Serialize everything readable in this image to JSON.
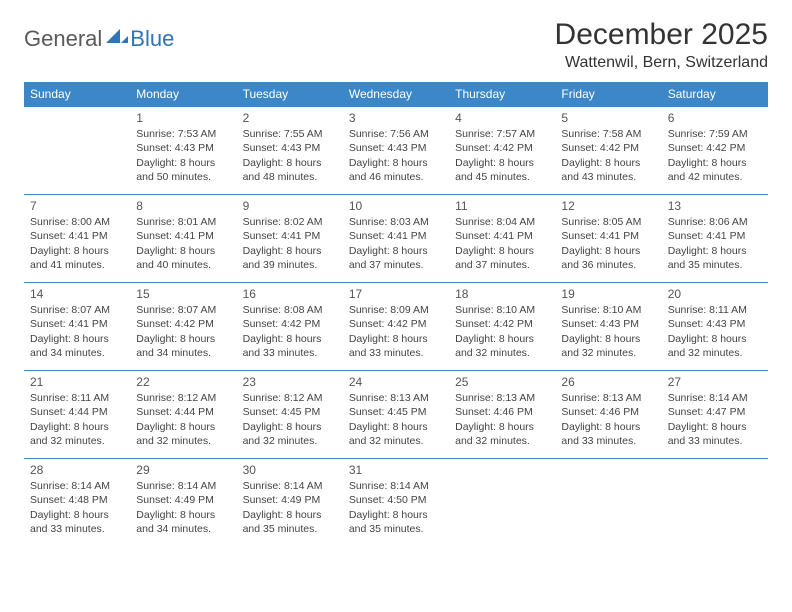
{
  "brand": {
    "part1": "General",
    "part2": "Blue"
  },
  "title": "December 2025",
  "location": "Wattenwil, Bern, Switzerland",
  "colors": {
    "header_bg": "#3b87c8",
    "header_fg": "#ffffff",
    "rule": "#3b87c8",
    "text": "#333333",
    "brand_gray": "#5a5a5a",
    "brand_blue": "#2f74b5",
    "page_bg": "#ffffff"
  },
  "typography": {
    "title_fontsize": 30,
    "location_fontsize": 16,
    "dayhead_fontsize": 12,
    "daynum_fontsize": 12,
    "body_fontsize": 10.5
  },
  "day_headers": [
    "Sunday",
    "Monday",
    "Tuesday",
    "Wednesday",
    "Thursday",
    "Friday",
    "Saturday"
  ],
  "weeks": [
    [
      null,
      {
        "n": "1",
        "sr": "7:53 AM",
        "ss": "4:43 PM",
        "dl": "8 hours and 50 minutes."
      },
      {
        "n": "2",
        "sr": "7:55 AM",
        "ss": "4:43 PM",
        "dl": "8 hours and 48 minutes."
      },
      {
        "n": "3",
        "sr": "7:56 AM",
        "ss": "4:43 PM",
        "dl": "8 hours and 46 minutes."
      },
      {
        "n": "4",
        "sr": "7:57 AM",
        "ss": "4:42 PM",
        "dl": "8 hours and 45 minutes."
      },
      {
        "n": "5",
        "sr": "7:58 AM",
        "ss": "4:42 PM",
        "dl": "8 hours and 43 minutes."
      },
      {
        "n": "6",
        "sr": "7:59 AM",
        "ss": "4:42 PM",
        "dl": "8 hours and 42 minutes."
      }
    ],
    [
      {
        "n": "7",
        "sr": "8:00 AM",
        "ss": "4:41 PM",
        "dl": "8 hours and 41 minutes."
      },
      {
        "n": "8",
        "sr": "8:01 AM",
        "ss": "4:41 PM",
        "dl": "8 hours and 40 minutes."
      },
      {
        "n": "9",
        "sr": "8:02 AM",
        "ss": "4:41 PM",
        "dl": "8 hours and 39 minutes."
      },
      {
        "n": "10",
        "sr": "8:03 AM",
        "ss": "4:41 PM",
        "dl": "8 hours and 37 minutes."
      },
      {
        "n": "11",
        "sr": "8:04 AM",
        "ss": "4:41 PM",
        "dl": "8 hours and 37 minutes."
      },
      {
        "n": "12",
        "sr": "8:05 AM",
        "ss": "4:41 PM",
        "dl": "8 hours and 36 minutes."
      },
      {
        "n": "13",
        "sr": "8:06 AM",
        "ss": "4:41 PM",
        "dl": "8 hours and 35 minutes."
      }
    ],
    [
      {
        "n": "14",
        "sr": "8:07 AM",
        "ss": "4:41 PM",
        "dl": "8 hours and 34 minutes."
      },
      {
        "n": "15",
        "sr": "8:07 AM",
        "ss": "4:42 PM",
        "dl": "8 hours and 34 minutes."
      },
      {
        "n": "16",
        "sr": "8:08 AM",
        "ss": "4:42 PM",
        "dl": "8 hours and 33 minutes."
      },
      {
        "n": "17",
        "sr": "8:09 AM",
        "ss": "4:42 PM",
        "dl": "8 hours and 33 minutes."
      },
      {
        "n": "18",
        "sr": "8:10 AM",
        "ss": "4:42 PM",
        "dl": "8 hours and 32 minutes."
      },
      {
        "n": "19",
        "sr": "8:10 AM",
        "ss": "4:43 PM",
        "dl": "8 hours and 32 minutes."
      },
      {
        "n": "20",
        "sr": "8:11 AM",
        "ss": "4:43 PM",
        "dl": "8 hours and 32 minutes."
      }
    ],
    [
      {
        "n": "21",
        "sr": "8:11 AM",
        "ss": "4:44 PM",
        "dl": "8 hours and 32 minutes."
      },
      {
        "n": "22",
        "sr": "8:12 AM",
        "ss": "4:44 PM",
        "dl": "8 hours and 32 minutes."
      },
      {
        "n": "23",
        "sr": "8:12 AM",
        "ss": "4:45 PM",
        "dl": "8 hours and 32 minutes."
      },
      {
        "n": "24",
        "sr": "8:13 AM",
        "ss": "4:45 PM",
        "dl": "8 hours and 32 minutes."
      },
      {
        "n": "25",
        "sr": "8:13 AM",
        "ss": "4:46 PM",
        "dl": "8 hours and 32 minutes."
      },
      {
        "n": "26",
        "sr": "8:13 AM",
        "ss": "4:46 PM",
        "dl": "8 hours and 33 minutes."
      },
      {
        "n": "27",
        "sr": "8:14 AM",
        "ss": "4:47 PM",
        "dl": "8 hours and 33 minutes."
      }
    ],
    [
      {
        "n": "28",
        "sr": "8:14 AM",
        "ss": "4:48 PM",
        "dl": "8 hours and 33 minutes."
      },
      {
        "n": "29",
        "sr": "8:14 AM",
        "ss": "4:49 PM",
        "dl": "8 hours and 34 minutes."
      },
      {
        "n": "30",
        "sr": "8:14 AM",
        "ss": "4:49 PM",
        "dl": "8 hours and 35 minutes."
      },
      {
        "n": "31",
        "sr": "8:14 AM",
        "ss": "4:50 PM",
        "dl": "8 hours and 35 minutes."
      },
      null,
      null,
      null
    ]
  ],
  "labels": {
    "sunrise": "Sunrise:",
    "sunset": "Sunset:",
    "daylight": "Daylight:"
  }
}
